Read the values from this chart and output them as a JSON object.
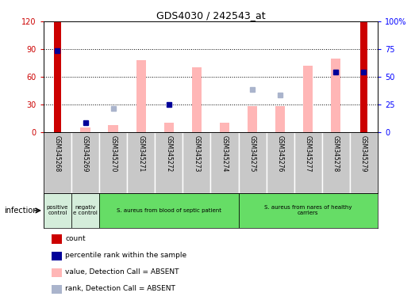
{
  "title": "GDS4030 / 242543_at",
  "samples": [
    "GSM345268",
    "GSM345269",
    "GSM345270",
    "GSM345271",
    "GSM345272",
    "GSM345273",
    "GSM345274",
    "GSM345275",
    "GSM345276",
    "GSM345277",
    "GSM345278",
    "GSM345279"
  ],
  "count_values": [
    120,
    0,
    0,
    0,
    0,
    0,
    0,
    0,
    0,
    0,
    0,
    120
  ],
  "percentile_rank": [
    88,
    10,
    0,
    0,
    30,
    0,
    0,
    0,
    0,
    0,
    65,
    65
  ],
  "absent_value": [
    0,
    5,
    8,
    78,
    10,
    70,
    10,
    28,
    28,
    72,
    80,
    0
  ],
  "absent_rank": [
    0,
    0,
    26,
    0,
    0,
    0,
    0,
    46,
    40,
    0,
    0,
    0
  ],
  "ylim_left": [
    0,
    120
  ],
  "ylim_right": [
    0,
    120
  ],
  "yticks_left": [
    0,
    30,
    60,
    90,
    120
  ],
  "ytick_labels_left": [
    "0",
    "30",
    "60",
    "90",
    "120"
  ],
  "yticks_right": [
    0,
    30,
    60,
    90,
    120
  ],
  "ytick_labels_right": [
    "0",
    "25",
    "50",
    "75",
    "100%"
  ],
  "groups": [
    {
      "label": "positive\ncontrol",
      "start": 0,
      "end": 1,
      "color": "#d4edda"
    },
    {
      "label": "negativ\ne control",
      "start": 1,
      "end": 2,
      "color": "#d4edda"
    },
    {
      "label": "S. aureus from blood of septic patient",
      "start": 2,
      "end": 7,
      "color": "#66dd66"
    },
    {
      "label": "S. aureus from nares of healthy\ncarriers",
      "start": 7,
      "end": 12,
      "color": "#66dd66"
    }
  ],
  "infection_label": "infection",
  "colors": {
    "count": "#cc0000",
    "percentile": "#000099",
    "absent_value": "#ffb6b6",
    "absent_rank": "#aab4cc",
    "bg_plot": "#ffffff",
    "bg_samples": "#c8c8c8",
    "grid": "#000000"
  },
  "legend": [
    {
      "label": "count",
      "color": "#cc0000"
    },
    {
      "label": "percentile rank within the sample",
      "color": "#000099"
    },
    {
      "label": "value, Detection Call = ABSENT",
      "color": "#ffb6b6"
    },
    {
      "label": "rank, Detection Call = ABSENT",
      "color": "#aab4cc"
    }
  ]
}
